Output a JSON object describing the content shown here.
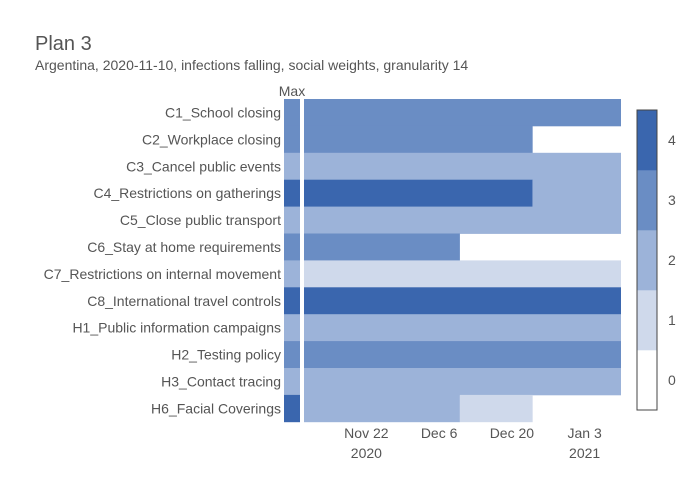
{
  "chart_data": {
    "type": "heatmap",
    "title": "Plan 3",
    "subtitle": "Argentina, 2020-11-10, infections falling, social weights, granularity 14",
    "max_column_label": "Max",
    "rows": [
      "C1_School closing",
      "C2_Workplace closing",
      "C3_Cancel public events",
      "C4_Restrictions on gatherings",
      "C5_Close public transport",
      "C6_Stay at home requirements",
      "C7_Restrictions on internal movement",
      "C8_International travel controls",
      "H1_Public information campaigns",
      "H2_Testing policy",
      "H3_Contact tracing",
      "H6_Facial Coverings"
    ],
    "max_values": [
      3,
      3,
      2,
      4,
      2,
      3,
      2,
      4,
      2,
      3,
      2,
      4
    ],
    "x_start": "2020-11-10",
    "x_end": "2021-01-10",
    "x_ticks": [
      {
        "date": "2020-11-22",
        "label": "Nov 22",
        "sublabel": "2020"
      },
      {
        "date": "2020-12-06",
        "label": "Dec 6",
        "sublabel": ""
      },
      {
        "date": "2020-12-20",
        "label": "Dec 20",
        "sublabel": ""
      },
      {
        "date": "2021-01-03",
        "label": "Jan 3",
        "sublabel": "2021"
      }
    ],
    "segments": [
      [
        {
          "start": "2020-11-10",
          "end": "2021-01-10",
          "value": 3
        }
      ],
      [
        {
          "start": "2020-11-10",
          "end": "2020-12-24",
          "value": 3
        }
      ],
      [
        {
          "start": "2020-11-10",
          "end": "2021-01-10",
          "value": 2
        }
      ],
      [
        {
          "start": "2020-11-10",
          "end": "2020-12-24",
          "value": 4
        },
        {
          "start": "2020-12-24",
          "end": "2021-01-10",
          "value": 2
        }
      ],
      [
        {
          "start": "2020-11-10",
          "end": "2021-01-10",
          "value": 2
        }
      ],
      [
        {
          "start": "2020-11-10",
          "end": "2020-12-10",
          "value": 3
        }
      ],
      [
        {
          "start": "2020-11-10",
          "end": "2021-01-10",
          "value": 1
        }
      ],
      [
        {
          "start": "2020-11-10",
          "end": "2021-01-10",
          "value": 4
        }
      ],
      [
        {
          "start": "2020-11-10",
          "end": "2021-01-10",
          "value": 2
        }
      ],
      [
        {
          "start": "2020-11-10",
          "end": "2021-01-10",
          "value": 3
        }
      ],
      [
        {
          "start": "2020-11-10",
          "end": "2021-01-10",
          "value": 2
        }
      ],
      [
        {
          "start": "2020-11-10",
          "end": "2020-12-10",
          "value": 2
        },
        {
          "start": "2020-12-10",
          "end": "2020-12-24",
          "value": 1
        }
      ]
    ],
    "colorscale": {
      "range": [
        0,
        4
      ],
      "ticks": [
        "0",
        "1",
        "2",
        "3",
        "4"
      ],
      "colors": [
        "#ffffff",
        "#cfd9eb",
        "#9cb3d9",
        "#6a8dc4",
        "#3a66ae"
      ]
    }
  }
}
